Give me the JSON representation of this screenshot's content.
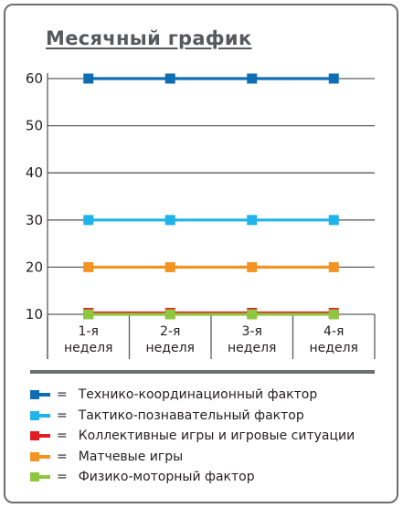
{
  "chart_data": {
    "type": "line",
    "title": "Месячный график",
    "categories": [
      "1-я неделя",
      "2-я неделя",
      "3-я неделя",
      "4-я неделя"
    ],
    "category_lines": [
      [
        "1-я",
        "неделя"
      ],
      [
        "2-я",
        "неделя"
      ],
      [
        "3-я",
        "неделя"
      ],
      [
        "4-я",
        "неделя"
      ]
    ],
    "ylim": [
      10,
      60
    ],
    "yticks": [
      "10",
      "20",
      "30",
      "40",
      "50",
      "60"
    ],
    "grid": true,
    "legend_position": "bottom",
    "legend_symbol": "=",
    "series": [
      {
        "name": "Технико-координационный фактор",
        "color": "#0f6eb3",
        "values": [
          60,
          60,
          60,
          60
        ]
      },
      {
        "name": "Тактико-познавательный фактор",
        "color": "#1eb4ea",
        "values": [
          30,
          30,
          30,
          30
        ]
      },
      {
        "name": "Коллективные игры и игровые ситуации",
        "color": "#e31b24",
        "values": [
          10.3,
          10.3,
          10.3,
          10.3
        ]
      },
      {
        "name": "Матчевые игры",
        "color": "#f39322",
        "values": [
          20,
          20,
          20,
          20
        ]
      },
      {
        "name": "Физико-моторный фактор",
        "color": "#8dc63f",
        "values": [
          10,
          10,
          10,
          10
        ]
      }
    ]
  }
}
